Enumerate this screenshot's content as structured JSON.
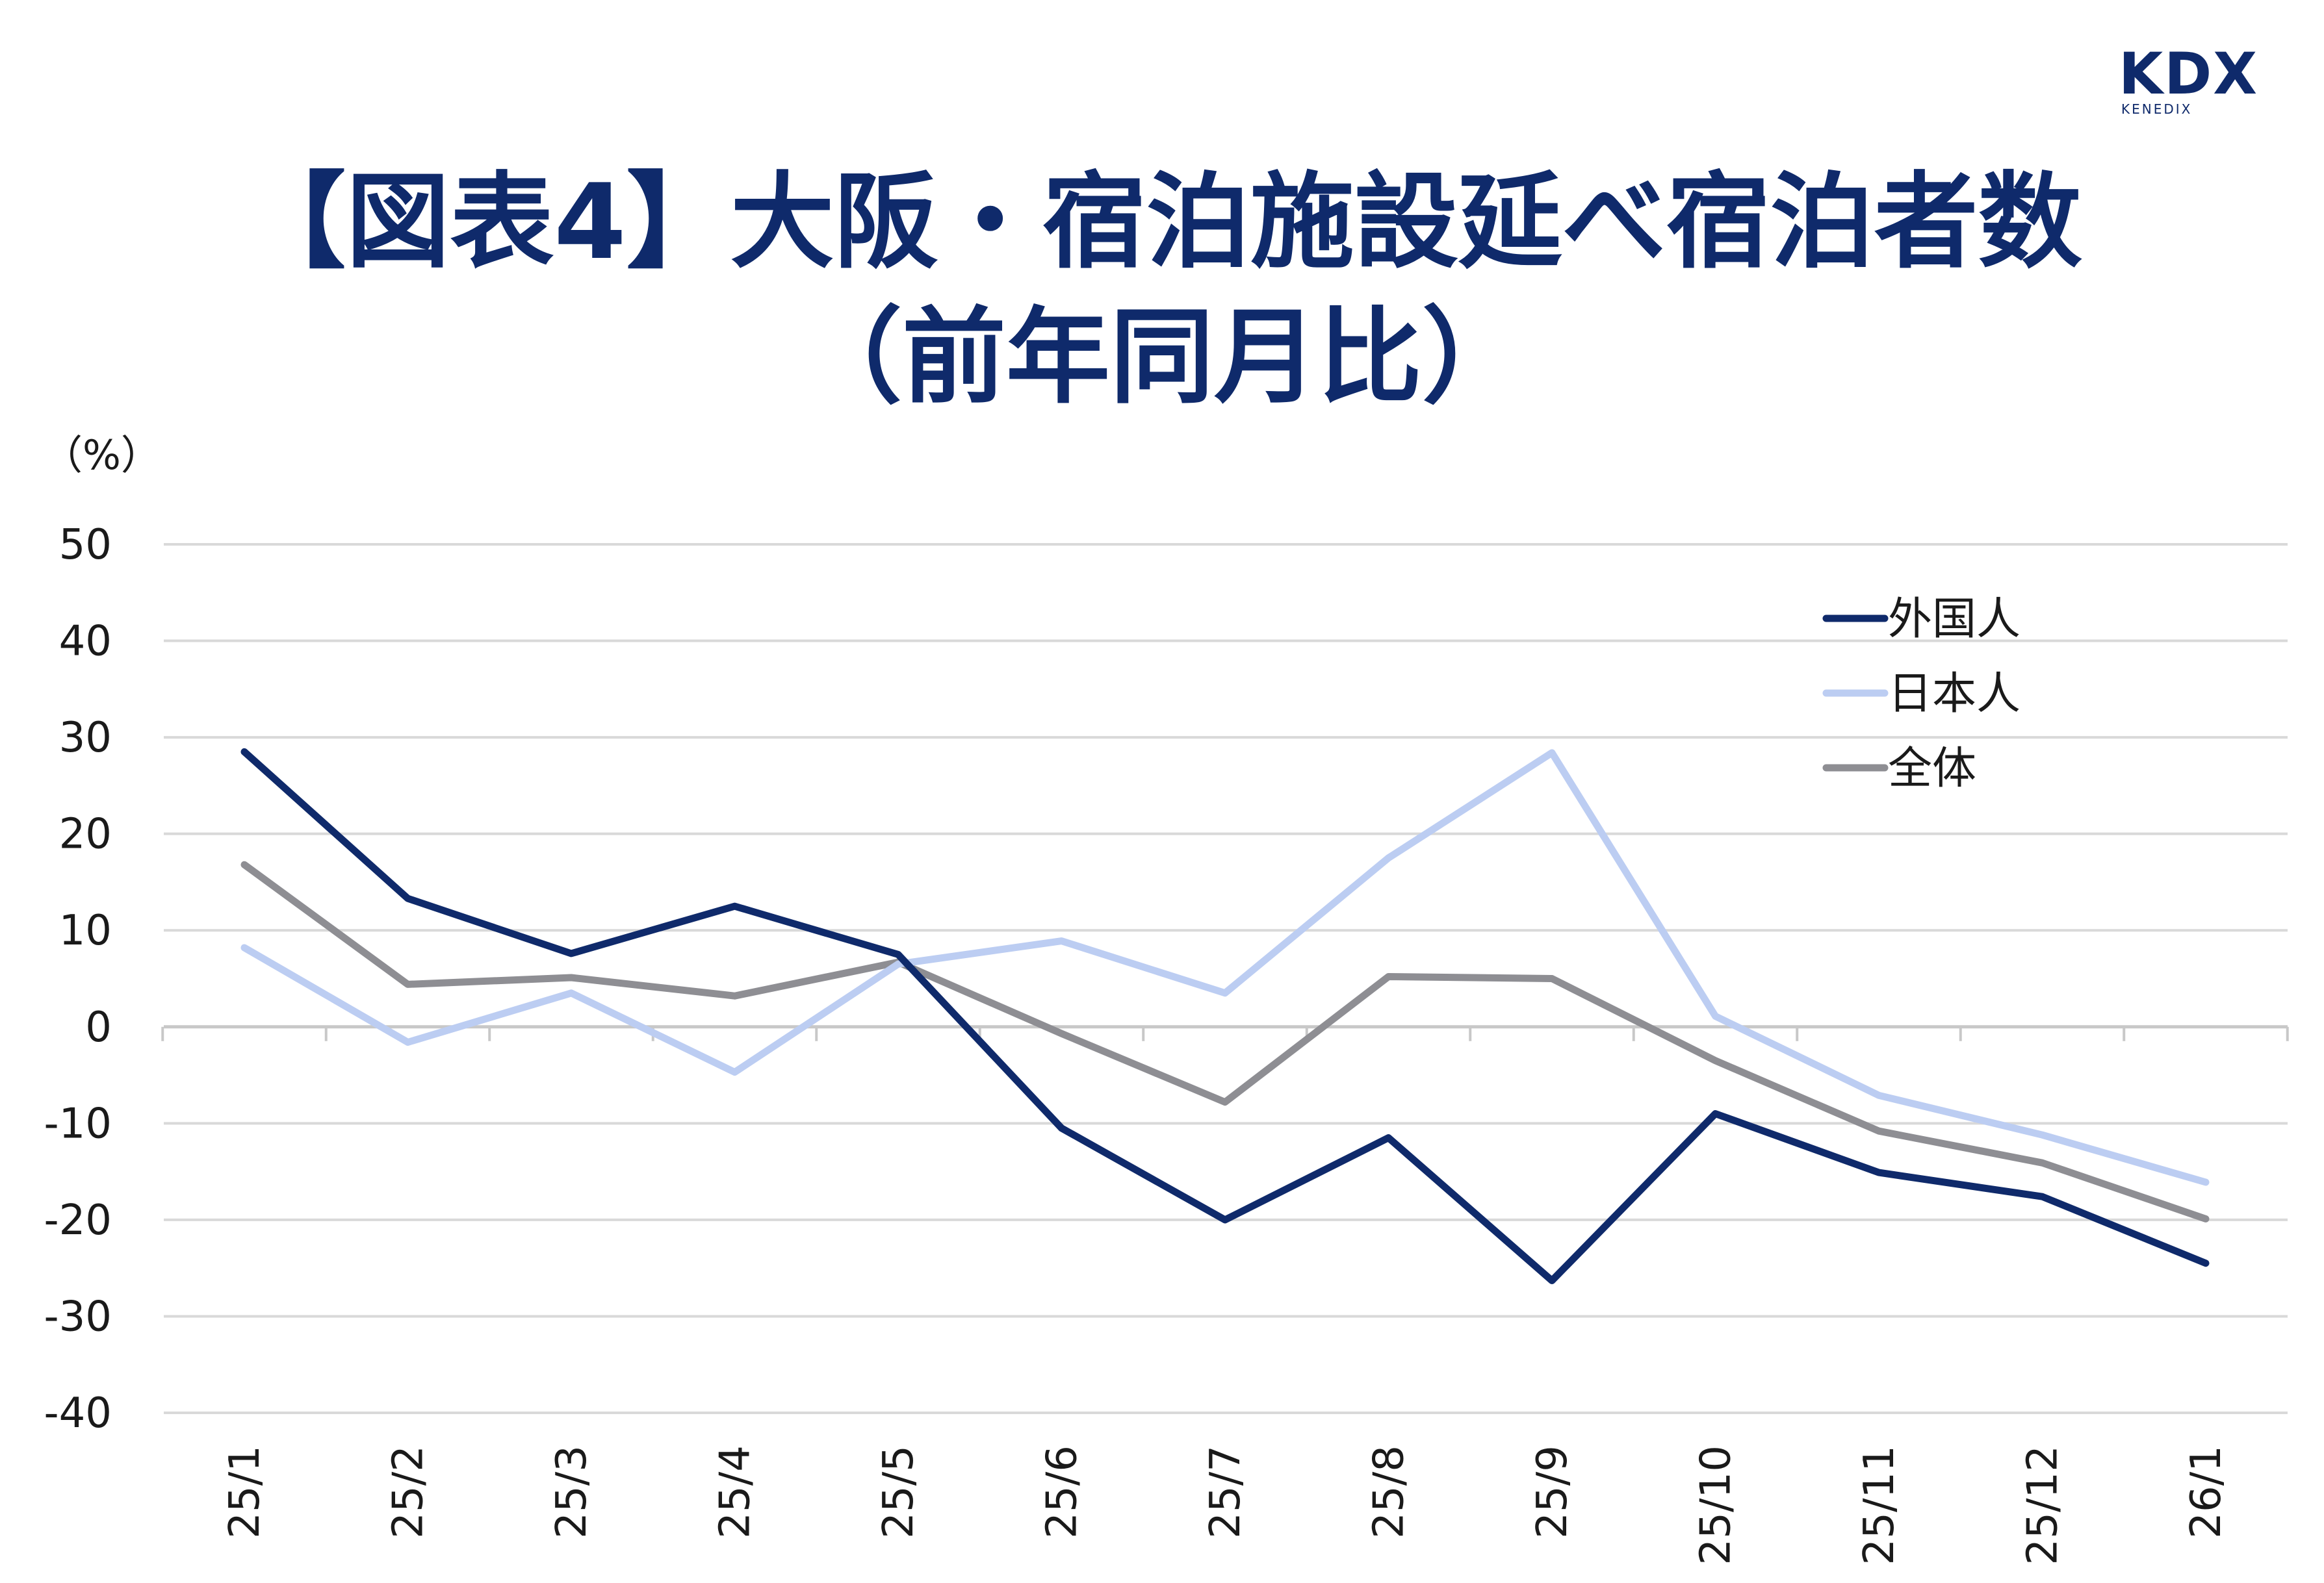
{
  "logo": {
    "main": "KDX",
    "sub": "KENEDIX"
  },
  "title": {
    "line1": "【図表4】大阪・宿泊施設延べ宿泊者数",
    "line2": "（前年同月比）"
  },
  "chart_data": {
    "type": "line",
    "unit_label": "（%）",
    "categories": [
      "25/1",
      "25/2",
      "25/3",
      "25/4",
      "25/5",
      "25/6",
      "25/7",
      "25/8",
      "25/9",
      "25/10",
      "25/11",
      "25/12",
      "26/1"
    ],
    "y_ticks": [
      "50",
      "40",
      "30",
      "20",
      "10",
      "0",
      "-10",
      "-20",
      "-30",
      "-40"
    ],
    "ylim": [
      -40,
      50
    ],
    "grid": true,
    "legend_position": "top-right",
    "series": [
      {
        "name": "外国人",
        "color": "#0f2a6b",
        "values": [
          28.5,
          13.3,
          7.6,
          12.5,
          7.5,
          -10.5,
          -20.0,
          -11.5,
          -26.3,
          -9.0,
          -15.1,
          -17.6,
          -24.5
        ]
      },
      {
        "name": "日本人",
        "color": "#bccdf2",
        "values": [
          8.2,
          -1.6,
          3.5,
          -4.7,
          6.5,
          8.9,
          3.5,
          17.5,
          28.4,
          1.1,
          -7.1,
          -11.2,
          -16.1
        ]
      },
      {
        "name": "全体",
        "color": "#8e8e93",
        "values": [
          16.8,
          4.4,
          5.1,
          3.2,
          6.7,
          -0.7,
          -7.8,
          5.2,
          5.0,
          -3.5,
          -10.8,
          -14.1,
          -19.9
        ]
      }
    ]
  }
}
